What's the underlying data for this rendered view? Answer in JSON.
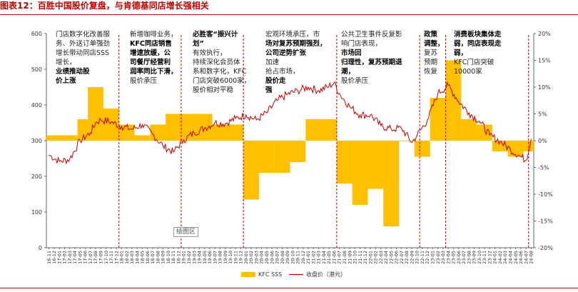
{
  "title": "图表12：百胜中国股价复盘，与肯德基同店增长强相关",
  "plot_area_label": "绘图区",
  "colors": {
    "bar": "#ffc000",
    "line": "#c00000",
    "rule": "#c00000",
    "grid": "#c8c8c8",
    "event_line": "#c00000"
  },
  "annotations": [
    {
      "lines": [
        "门店数字化改善服",
        "务、外送订单强劲",
        "增长带动同店SSS",
        "增长，"
      ],
      "bold": [
        "业绩推动股",
        "价上涨"
      ]
    },
    {
      "lines": [
        "新增咖啡业务，"
      ],
      "bold": [
        "KFC同店销售",
        "增速放缓，公",
        "司餐厅经营利",
        "润率同比下滑，"
      ],
      "after": [
        "股价承压"
      ]
    },
    {
      "lines": [],
      "bold": [
        "必胜客“振兴计",
        "划”"
      ],
      "after": [
        "有效执行，",
        "持续深化会员体",
        "系和数字化，KFC",
        "门店突破6000家，",
        "股价相对平稳"
      ]
    },
    {
      "lines": [
        "宏观环境承压，市"
      ],
      "bold": [
        "场对复苏预期强烈，",
        "公司逆势扩张"
      ],
      "after": [
        "加速",
        "抢占市场，"
      ],
      "bold2": [
        "股价走",
        "强"
      ]
    },
    {
      "lines": [
        "公共卫生事件反复影",
        "响门店表现，"
      ],
      "bold": [
        "市场回",
        "归理性，复苏预期退",
        "潮，"
      ],
      "after": [
        "股价承压"
      ]
    },
    {
      "lines": [],
      "bold": [
        "政策",
        "调整，"
      ],
      "after": [
        "复苏",
        "预期",
        "恢复"
      ]
    },
    {
      "lines": [],
      "bold": [
        "消费板块集体走",
        "弱，同店表现走",
        "弱，"
      ],
      "after": [
        "KFC门店突破",
        "10000家"
      ]
    }
  ],
  "chart_data": {
    "type": "bar+line",
    "title": "图表12：百胜中国股价复盘，与肯德基同店增长强相关",
    "x_tick_labels": [
      "16-11",
      "16-12",
      "17-01",
      "17-02",
      "17-03",
      "17-04",
      "17-05",
      "17-06",
      "17-07",
      "17-08",
      "17-09",
      "17-10",
      "17-11",
      "17-12",
      "18-01",
      "18-02",
      "18-03",
      "18-04",
      "18-05",
      "18-06",
      "18-07",
      "18-08",
      "18-09",
      "18-10",
      "18-11",
      "18-12",
      "19-01",
      "19-02",
      "19-03",
      "19-04",
      "19-05",
      "19-06",
      "19-07",
      "19-08",
      "19-09",
      "19-10",
      "19-11",
      "19-12",
      "20-01",
      "20-02",
      "20-03",
      "20-04",
      "20-05",
      "20-06",
      "20-07",
      "20-08",
      "20-09",
      "20-10",
      "20-11",
      "20-12",
      "21-01",
      "21-02",
      "21-03",
      "21-04",
      "21-05",
      "21-06",
      "21-07",
      "21-08",
      "21-09",
      "21-10",
      "21-11",
      "21-12",
      "22-01",
      "22-02",
      "22-03",
      "22-04",
      "22-05",
      "22-06",
      "22-07",
      "22-08",
      "22-09",
      "22-10",
      "22-11",
      "22-12",
      "23-01",
      "23-02",
      "23-03",
      "23-04",
      "23-05",
      "23-06",
      "23-07",
      "23-08",
      "23-09",
      "23-10",
      "23-11",
      "23-12",
      "24-01",
      "24-02",
      "24-03",
      "24-04",
      "24-05",
      "24-06",
      "24-07",
      "24-08"
    ],
    "left_axis": {
      "min": 0,
      "max": 600,
      "ticks": [
        0,
        100,
        200,
        300,
        400,
        500,
        600
      ]
    },
    "right_axis": {
      "min": -20,
      "max": 20,
      "ticks": [
        "-20%",
        "-15%",
        "-10%",
        "-5%",
        "0%",
        "5%",
        "10%",
        "15%",
        "20%"
      ]
    },
    "series": [
      {
        "name": "KFC SSS",
        "type": "bar",
        "axis": "right",
        "segments": [
          {
            "start": "16-11",
            "end": "17-04",
            "value": 1
          },
          {
            "start": "17-05",
            "end": "17-06",
            "value": 4
          },
          {
            "start": "17-07",
            "end": "17-09",
            "value": 10
          },
          {
            "start": "17-10",
            "end": "17-12",
            "value": 6
          },
          {
            "start": "18-01",
            "end": "18-03",
            "value": 3
          },
          {
            "start": "18-04",
            "end": "18-06",
            "value": 1
          },
          {
            "start": "18-07",
            "end": "18-09",
            "value": 3
          },
          {
            "start": "18-10",
            "end": "18-12",
            "value": 5
          },
          {
            "start": "19-01",
            "end": "19-06",
            "value": 5
          },
          {
            "start": "19-07",
            "end": "19-12",
            "value": 3
          },
          {
            "start": "20-01",
            "end": "20-03",
            "value": -11
          },
          {
            "start": "20-04",
            "end": "20-06",
            "value": -6
          },
          {
            "start": "20-07",
            "end": "20-09",
            "value": -6
          },
          {
            "start": "20-10",
            "end": "20-12",
            "value": -4
          },
          {
            "start": "21-01",
            "end": "21-03",
            "value": 4
          },
          {
            "start": "21-04",
            "end": "21-06",
            "value": 4
          },
          {
            "start": "21-07",
            "end": "21-09",
            "value": -8
          },
          {
            "start": "21-10",
            "end": "21-12",
            "value": -12
          },
          {
            "start": "22-01",
            "end": "22-03",
            "value": -9
          },
          {
            "start": "22-04",
            "end": "22-06",
            "value": -16
          },
          {
            "start": "22-07",
            "end": "22-09",
            "value": 0
          },
          {
            "start": "22-10",
            "end": "22-12",
            "value": -3
          },
          {
            "start": "23-01",
            "end": "23-03",
            "value": 8
          },
          {
            "start": "23-04",
            "end": "23-06",
            "value": 15
          },
          {
            "start": "23-07",
            "end": "23-09",
            "value": 4
          },
          {
            "start": "23-10",
            "end": "23-12",
            "value": 3
          },
          {
            "start": "24-01",
            "end": "24-03",
            "value": -2
          },
          {
            "start": "24-04",
            "end": "24-06",
            "value": -3
          },
          {
            "start": "24-07",
            "end": "24-08",
            "value": -2
          }
        ]
      },
      {
        "name": "收盘价（港元）",
        "type": "line",
        "axis": "left",
        "x": [
          "16-11",
          "17-01",
          "17-03",
          "17-05",
          "17-07",
          "17-08",
          "17-09",
          "17-11",
          "18-01",
          "18-03",
          "18-05",
          "18-07",
          "18-09",
          "18-11",
          "19-01",
          "19-03",
          "19-05",
          "19-07",
          "19-09",
          "19-11",
          "20-01",
          "20-03",
          "20-05",
          "20-07",
          "20-09",
          "20-11",
          "21-01",
          "21-03",
          "21-05",
          "21-06",
          "21-07",
          "21-09",
          "21-11",
          "22-01",
          "22-03",
          "22-05",
          "22-07",
          "22-09",
          "22-10",
          "22-12",
          "23-02",
          "23-04",
          "23-06",
          "23-08",
          "23-10",
          "23-12",
          "24-02",
          "24-04",
          "24-06",
          "24-07",
          "24-08"
        ],
        "values": [
          260,
          242,
          248,
          300,
          322,
          350,
          358,
          352,
          340,
          332,
          345,
          318,
          285,
          268,
          302,
          322,
          335,
          350,
          348,
          362,
          372,
          358,
          378,
          412,
          430,
          440,
          450,
          440,
          452,
          462,
          432,
          395,
          372,
          372,
          342,
          332,
          335,
          295,
          315,
          358,
          432,
          455,
          410,
          378,
          355,
          315,
          298,
          275,
          255,
          245,
          305
        ]
      }
    ],
    "event_markers": [
      "17-12",
      "18-12",
      "19-12",
      "21-06",
      "22-10",
      "23-03",
      "24-07"
    ],
    "legend": [
      "KFC SSS",
      "收盘价（港元）"
    ],
    "legend_position": "bottom"
  }
}
